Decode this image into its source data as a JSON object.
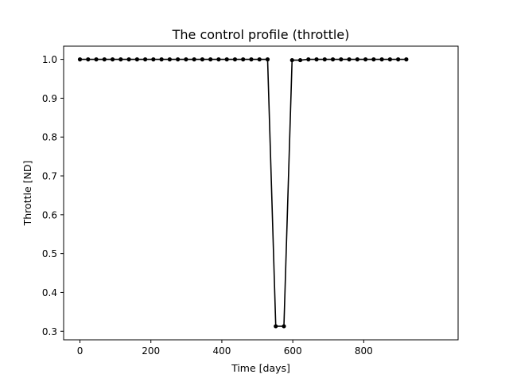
{
  "chart_data": {
    "type": "line",
    "title": "The control profile (throttle)",
    "xlabel": "Time [days]",
    "ylabel": "Throttle [ND]",
    "xlim": [
      -46,
      1066
    ],
    "ylim": [
      0.278,
      1.034
    ],
    "xticks": [
      0,
      200,
      400,
      600,
      800
    ],
    "xtick_labels": [
      "0",
      "200",
      "400",
      "600",
      "800"
    ],
    "yticks": [
      0.3,
      0.4,
      0.5,
      0.6,
      0.7,
      0.8,
      0.9,
      1.0
    ],
    "ytick_labels": [
      "0.3",
      "0.4",
      "0.5",
      "0.6",
      "0.7",
      "0.8",
      "0.9",
      "1.0"
    ],
    "grid": false,
    "color": "#000000",
    "series": [
      {
        "marker": "dot",
        "x": [
          0,
          23,
          46,
          69,
          92,
          115,
          138,
          161,
          184,
          207,
          230,
          253,
          276,
          299,
          322,
          345,
          368,
          391,
          414,
          437,
          460,
          483,
          506,
          529,
          552,
          575,
          598,
          621,
          644,
          667,
          690,
          713,
          736,
          759,
          782,
          805,
          828,
          851,
          874,
          897,
          920
        ],
        "y": [
          1.0,
          1.0,
          1.0,
          1.0,
          1.0,
          1.0,
          1.0,
          1.0,
          1.0,
          1.0,
          1.0,
          1.0,
          1.0,
          1.0,
          1.0,
          1.0,
          1.0,
          1.0,
          1.0,
          1.0,
          1.0,
          1.0,
          1.0,
          1.0,
          0.313,
          0.313,
          0.998,
          0.998,
          1.0,
          1.0,
          1.0,
          1.0,
          1.0,
          1.0,
          1.0,
          1.0,
          1.0,
          1.0,
          1.0,
          1.0,
          1.0
        ]
      }
    ]
  }
}
